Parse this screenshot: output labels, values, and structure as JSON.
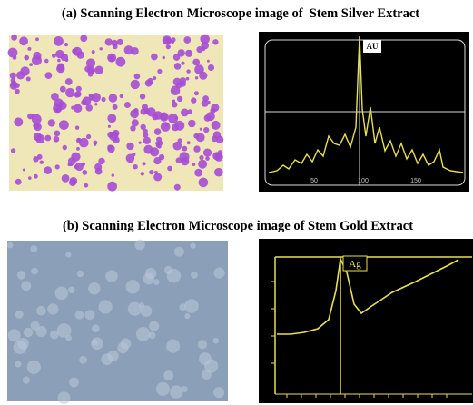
{
  "figure": {
    "panel_a": {
      "caption": "(a) Scanning Electron Microscope image of  Stem Silver Extract",
      "peak_label": "AU",
      "x_tick_labels": [
        "50",
        "100",
        "150"
      ]
    },
    "panel_b": {
      "caption": "(b) Scanning Electron Microscope image of Stem Gold Extract",
      "peak_label": "Ag"
    }
  }
}
